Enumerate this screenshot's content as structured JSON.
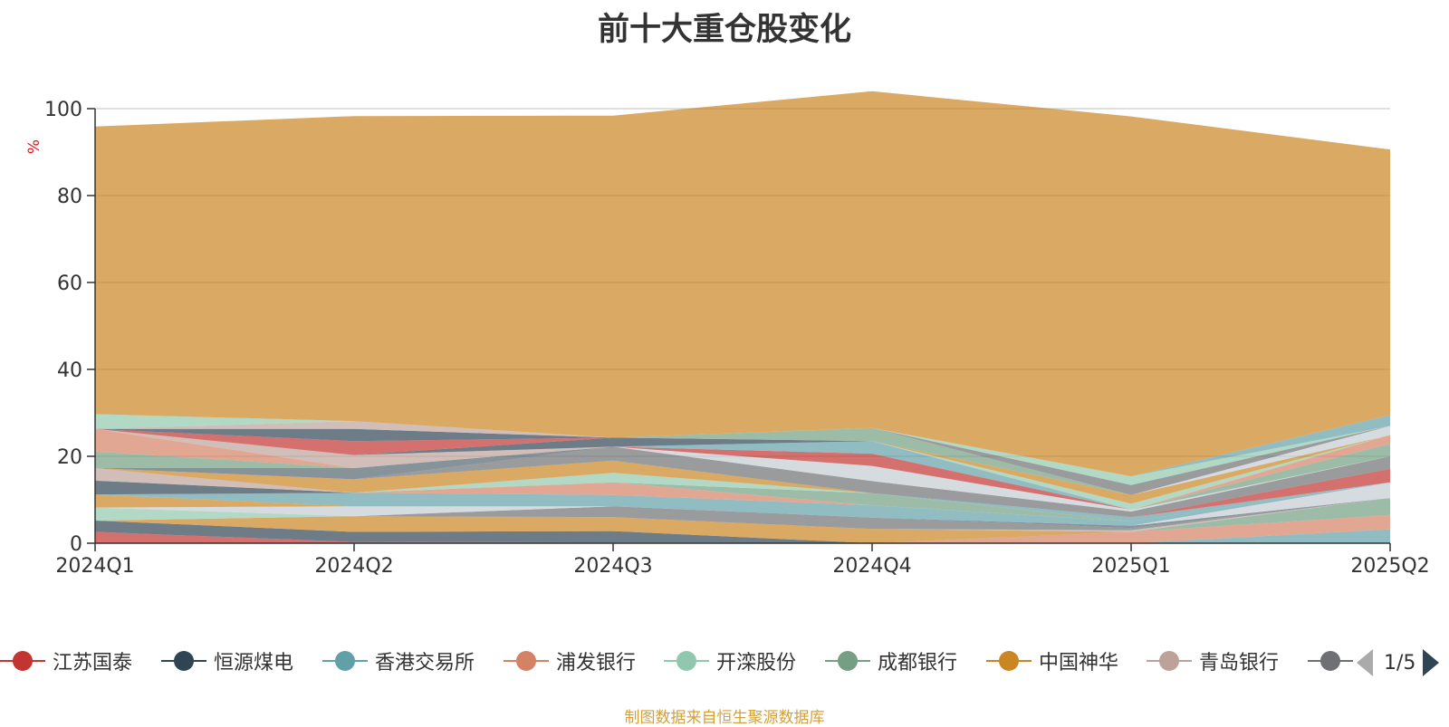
{
  "title": "前十大重仓股变化",
  "y_unit": "%",
  "source_note": "制图数据来自恒生聚源数据库",
  "legend": {
    "items": [
      {
        "name": "江苏国泰",
        "color": "#c23531"
      },
      {
        "name": "恒源煤电",
        "color": "#2f4554"
      },
      {
        "name": "香港交易所",
        "color": "#61a0a8"
      },
      {
        "name": "浦发银行",
        "color": "#d48265"
      },
      {
        "name": "开滦股份",
        "color": "#91c7ae"
      },
      {
        "name": "成都银行",
        "color": "#749f83"
      },
      {
        "name": "中国神华",
        "color": "#ca8622"
      },
      {
        "name": "青岛银行",
        "color": "#bda29a"
      },
      {
        "name": "",
        "color": "#6e7074"
      }
    ],
    "page_text": "1/5"
  },
  "chart_data": {
    "type": "area",
    "stacked": true,
    "title": "前十大重仓股变化",
    "ylabel": "%",
    "x": [
      "2024Q1",
      "2024Q2",
      "2024Q3",
      "2024Q4",
      "2025Q1",
      "2025Q2"
    ],
    "ylim": [
      0,
      100
    ],
    "yticks": [
      0,
      20,
      40,
      60,
      80,
      100
    ],
    "grid": true,
    "series": [
      {
        "color": "#c23531",
        "values": [
          2.6,
          0.3,
          0.2,
          0,
          0,
          0
        ]
      },
      {
        "color": "#2f4554",
        "values": [
          2.6,
          2.3,
          2.6,
          0,
          0,
          0
        ]
      },
      {
        "color": "#61a0a8",
        "values": [
          0,
          0,
          0,
          0,
          0,
          3.2
        ]
      },
      {
        "color": "#d48265",
        "values": [
          0,
          0,
          0,
          0,
          2.6,
          3.3
        ]
      },
      {
        "color": "#ca8622",
        "values": [
          0,
          3.6,
          3.2,
          3.3,
          0,
          0
        ]
      },
      {
        "color": "#91c7ae",
        "values": [
          3.0,
          0,
          0,
          0,
          0,
          0
        ]
      },
      {
        "color": "#749f83",
        "values": [
          0,
          0,
          0,
          0,
          0,
          3.9
        ]
      },
      {
        "color": "#bda29a",
        "values": [
          0,
          0,
          0,
          0,
          0.4,
          0
        ]
      },
      {
        "color": "#6e7074",
        "values": [
          0,
          0,
          2.5,
          2.6,
          0.5,
          0
        ]
      },
      {
        "color": "#546570",
        "values": [
          0,
          0,
          0,
          0,
          0.5,
          0
        ]
      },
      {
        "color": "#c4ccd3",
        "values": [
          0,
          2.3,
          0,
          0,
          0,
          3.6
        ]
      },
      {
        "color": "#ca8622",
        "values": [
          3.0,
          0,
          0,
          0,
          0,
          0
        ]
      },
      {
        "color": "#61a0a8",
        "values": [
          0,
          3.1,
          2.6,
          2.8,
          1.0,
          0
        ]
      },
      {
        "color": "#d48265",
        "values": [
          0,
          0,
          2.9,
          0,
          0,
          0
        ]
      },
      {
        "color": "#2f4554",
        "values": [
          3.2,
          0,
          0,
          0,
          0,
          0
        ]
      },
      {
        "color": "#749f83",
        "values": [
          0,
          0,
          0,
          2.8,
          0,
          0
        ]
      },
      {
        "color": "#91c7ae",
        "values": [
          0,
          0,
          2.2,
          0,
          0,
          0
        ]
      },
      {
        "color": "#61a0a8",
        "values": [
          0,
          0,
          0,
          0,
          1.0,
          0
        ]
      },
      {
        "color": "#c23531",
        "values": [
          0,
          0,
          0,
          0,
          0,
          3.1
        ]
      },
      {
        "color": "#bda29a",
        "values": [
          2.9,
          0,
          0,
          0,
          0,
          0
        ]
      },
      {
        "color": "#ca8622",
        "values": [
          0,
          3.1,
          2.8,
          0,
          0,
          0
        ]
      },
      {
        "color": "#6e7074",
        "values": [
          0,
          0,
          3.2,
          2.8,
          1.3,
          2.9
        ]
      },
      {
        "color": "#546570",
        "values": [
          0,
          2.6,
          0,
          0,
          0,
          0
        ]
      },
      {
        "color": "#c4ccd3",
        "values": [
          0,
          0,
          0,
          3.5,
          0.4,
          0
        ]
      },
      {
        "color": "#c23531",
        "values": [
          0,
          0,
          0,
          2.8,
          0,
          0
        ]
      },
      {
        "color": "#749f83",
        "values": [
          0,
          0,
          0,
          0,
          0,
          2.9
        ]
      },
      {
        "color": "#d48265",
        "values": [
          0,
          0,
          0,
          0,
          0,
          2.0
        ]
      },
      {
        "color": "#61a0a8",
        "values": [
          0,
          0,
          0,
          2.9,
          0,
          0
        ]
      },
      {
        "color": "#91c7ae",
        "values": [
          0,
          0,
          0,
          0,
          1.4,
          0
        ]
      },
      {
        "color": "#ca8622",
        "values": [
          0,
          0,
          0,
          0,
          2.0,
          0
        ]
      },
      {
        "color": "#749f83",
        "values": [
          3.8,
          0,
          0,
          0,
          0,
          0
        ]
      },
      {
        "color": "#d48265",
        "values": [
          5.2,
          0,
          0,
          0,
          0,
          0
        ]
      },
      {
        "color": "#bda29a",
        "values": [
          0,
          3.0,
          0,
          0,
          0,
          0
        ]
      },
      {
        "color": "#2f4554",
        "values": [
          0,
          0,
          2.1,
          0,
          0,
          0
        ]
      },
      {
        "color": "#c4ccd3",
        "values": [
          0,
          0,
          0,
          0,
          0,
          2.1
        ]
      },
      {
        "color": "#c23531",
        "values": [
          0,
          3.2,
          0,
          0,
          0,
          0
        ]
      },
      {
        "color": "#749f83",
        "values": [
          0,
          0,
          0,
          3.0,
          0,
          0
        ]
      },
      {
        "color": "#2f4554",
        "values": [
          0,
          2.8,
          0,
          0,
          0,
          0
        ]
      },
      {
        "color": "#6e7074",
        "values": [
          0,
          0,
          0,
          0,
          2.3,
          0
        ]
      },
      {
        "color": "#91c7ae",
        "values": [
          0,
          0,
          0,
          0,
          2.0,
          0
        ]
      },
      {
        "color": "#61a0a8",
        "values": [
          0,
          0,
          0,
          0,
          0,
          2.5
        ]
      },
      {
        "color": "#bda29a",
        "values": [
          0,
          1.8,
          0,
          0,
          0,
          0
        ]
      },
      {
        "color": "#91c7ae",
        "values": [
          3.4,
          0,
          0,
          0,
          0,
          0
        ]
      },
      {
        "color": "#ca8622",
        "values": [
          66.2,
          70.2,
          74.1,
          77.5,
          82.8,
          61.1
        ]
      }
    ]
  }
}
